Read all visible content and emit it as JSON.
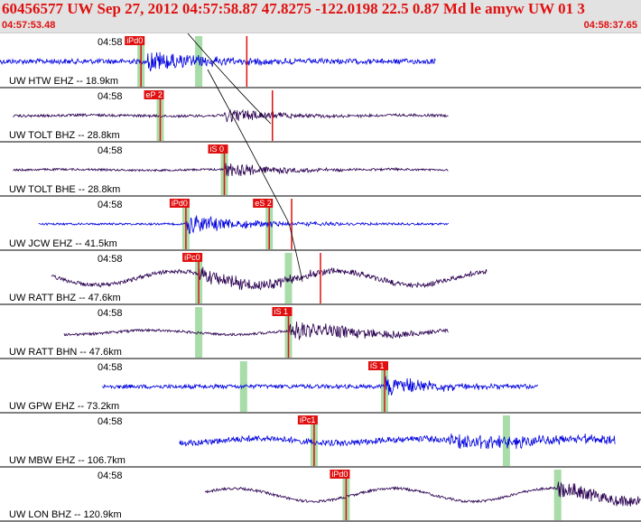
{
  "header": {
    "title": "60456577 UW Sep 27, 2012 04:57:58.87    47.8275 -122.0198 22.5 0.87 Md le amyw UW 01    3",
    "time_start": "04:57:53.48",
    "time_end": "04:58:37.65"
  },
  "colors": {
    "header_text": "#e01010",
    "trace_blue": "#0000e0",
    "trace_purple": "#2a0050",
    "pick": "#e01010",
    "window": "#a8dca8"
  },
  "traces": [
    {
      "label": "UW HTW EHZ -- 18.9km",
      "time": "04:58",
      "color": "blue",
      "start": 0.0,
      "end": 0.68,
      "noise": 0.1,
      "low": 0.0,
      "onset": 0.23,
      "amp": 0.4,
      "decay": 0.1,
      "picks": [
        {
          "text": "iPd0",
          "pos": 0.22
        },
        {
          "text": "",
          "pos": 0.385,
          "tall": true
        }
      ],
      "windows": [
        0.22,
        0.31
      ]
    },
    {
      "label": "UW TOLT BHZ -- 28.8km",
      "time": "04:58",
      "color": "purple",
      "start": 0.02,
      "end": 0.7,
      "noise": 0.05,
      "low": 0.02,
      "onset": 0.35,
      "amp": 0.3,
      "decay": 0.08,
      "picks": [
        {
          "text": "eP 2",
          "pos": 0.25
        },
        {
          "text": "",
          "pos": 0.425,
          "tall": true
        }
      ],
      "windows": [
        0.25
      ]
    },
    {
      "label": "UW TOLT BHE -- 28.8km",
      "time": "04:58",
      "color": "purple",
      "start": 0.02,
      "end": 0.7,
      "noise": 0.04,
      "low": 0.02,
      "onset": 0.35,
      "amp": 0.32,
      "decay": 0.09,
      "picks": [
        {
          "text": "iS 0",
          "pos": 0.35
        }
      ],
      "windows": [
        0.35
      ]
    },
    {
      "label": "UW JCW EHZ -- 41.5km",
      "time": "04:58",
      "color": "blue",
      "start": 0.06,
      "end": 0.7,
      "noise": 0.04,
      "low": 0.0,
      "onset": 0.29,
      "amp": 0.4,
      "decay": 0.1,
      "picks": [
        {
          "text": "iPd0",
          "pos": 0.29
        },
        {
          "text": "eS 2",
          "pos": 0.42
        },
        {
          "text": "",
          "pos": 0.455,
          "tall": true
        }
      ],
      "windows": [
        0.29,
        0.42
      ]
    },
    {
      "label": "UW RATT BHZ -- 47.6km",
      "time": "04:58",
      "color": "purple",
      "start": 0.08,
      "end": 0.76,
      "noise": 0.08,
      "low": 0.32,
      "onset": 0.31,
      "amp": 0.28,
      "decay": 0.2,
      "picks": [
        {
          "text": "iPc0",
          "pos": 0.31
        },
        {
          "text": "",
          "pos": 0.5,
          "tall": true
        }
      ],
      "windows": [
        0.31,
        0.45
      ]
    },
    {
      "label": "UW RATT BHN -- 47.6km",
      "time": "04:58",
      "color": "purple",
      "start": 0.1,
      "end": 0.7,
      "noise": 0.05,
      "low": 0.1,
      "onset": 0.45,
      "amp": 0.38,
      "decay": 0.15,
      "picks": [
        {
          "text": "iS 1",
          "pos": 0.45
        }
      ],
      "windows": [
        0.31,
        0.45
      ]
    },
    {
      "label": "UW GPW EHZ -- 73.2km",
      "time": "04:58",
      "color": "blue",
      "start": 0.16,
      "end": 0.84,
      "noise": 0.08,
      "low": 0.0,
      "onset": 0.6,
      "amp": 0.42,
      "decay": 0.08,
      "picks": [
        {
          "text": "iS 1",
          "pos": 0.6
        }
      ],
      "windows": [
        0.38,
        0.6
      ]
    },
    {
      "label": "UW MBW EHZ -- 106.7km",
      "time": "04:58",
      "color": "blue",
      "start": 0.28,
      "end": 0.96,
      "noise": 0.12,
      "low": 0.1,
      "onset": 0.7,
      "amp": 0.24,
      "decay": 0.3,
      "picks": [
        {
          "text": "iPc1",
          "pos": 0.49
        }
      ],
      "windows": [
        0.49,
        0.79
      ]
    },
    {
      "label": "UW LON BHZ -- 120.9km",
      "time": "04:58",
      "color": "purple",
      "start": 0.32,
      "end": 1.0,
      "noise": 0.05,
      "low": 0.3,
      "onset": 0.87,
      "amp": 0.3,
      "decay": 0.25,
      "picks": [
        {
          "text": "iPd0",
          "pos": 0.54
        }
      ],
      "windows": [
        0.54,
        0.87
      ]
    }
  ]
}
